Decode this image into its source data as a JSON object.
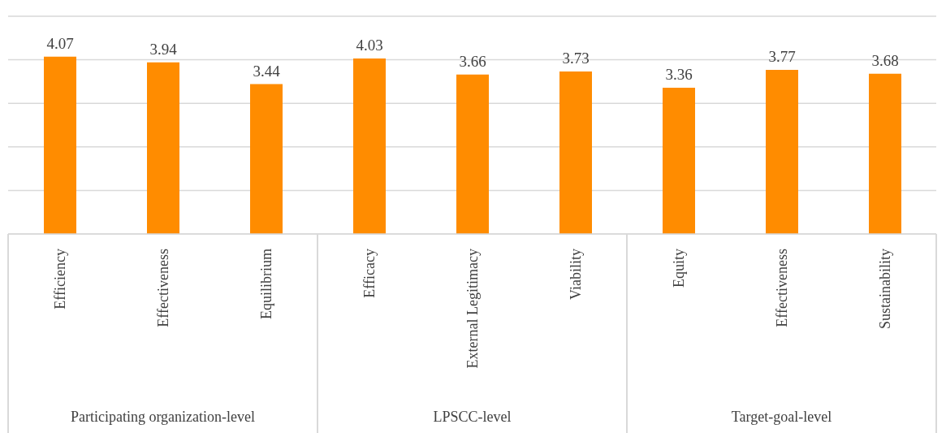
{
  "chart_data": {
    "type": "bar",
    "categories": [
      "Efficiency",
      "Effectiveness",
      "Equilibrium",
      "Efficacy",
      "External Legitimacy",
      "Viability",
      "Equity",
      "Effectiveness",
      "Sustainability"
    ],
    "values": [
      4.07,
      3.94,
      3.44,
      4.03,
      3.66,
      3.73,
      3.36,
      3.77,
      3.68
    ],
    "color": "#ff8c00",
    "ylim": [
      0,
      5
    ],
    "yticks": [
      0,
      {
        "value": 1,
        "label": null
      },
      {
        "value": 2,
        "label": null
      },
      {
        "value": 3,
        "label": null
      },
      {
        "value": 4,
        "label": null
      },
      {
        "value": 5,
        "label": null
      }
    ],
    "grid": "y",
    "data_labels": true,
    "tick_labels": "x",
    "annotations": [
      "Participating organization-level",
      "LPSCC-level",
      "Target-goal-level"
    ]
  }
}
